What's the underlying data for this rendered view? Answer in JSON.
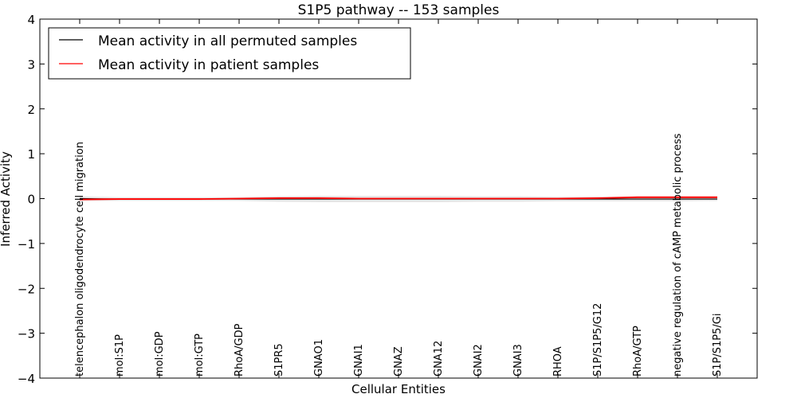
{
  "chart_data": {
    "type": "line",
    "title": "S1P5 pathway -- 153 samples",
    "xlabel": "Cellular Entities",
    "ylabel": "Inferred Activity",
    "ylim": [
      -4,
      4
    ],
    "yticks": [
      -4,
      -3,
      -2,
      -1,
      0,
      1,
      2,
      3,
      4
    ],
    "ytick_labels": [
      "−4",
      "−3",
      "−2",
      "−1",
      "0",
      "1",
      "2",
      "3",
      "4"
    ],
    "categories": [
      "telencephalon oligodendrocyte cell migration",
      "mol:S1P",
      "mol:GDP",
      "mol:GTP",
      "RhoA/GDP",
      "S1PR5",
      "GNAO1",
      "GNAI1",
      "GNAZ",
      "GNA12",
      "GNAI2",
      "GNAI3",
      "RHOA",
      "S1P/S1P5/G12",
      "RhoA/GTP",
      "negative regulation of cAMP metabolic process",
      "S1P/S1P5/Gi"
    ],
    "legend_position": "top-left",
    "series": [
      {
        "name": "Mean activity in all permuted samples",
        "color": "#000000",
        "values": [
          0.0,
          -0.01,
          -0.01,
          -0.01,
          -0.01,
          -0.01,
          -0.01,
          -0.01,
          -0.01,
          -0.01,
          -0.01,
          -0.01,
          -0.01,
          -0.01,
          -0.01,
          -0.01,
          -0.01
        ],
        "band": [
          0.05,
          0.04,
          0.04,
          0.04,
          0.04,
          0.06,
          0.07,
          0.07,
          0.07,
          0.07,
          0.06,
          0.06,
          0.05,
          0.05,
          0.05,
          0.05,
          0.04
        ]
      },
      {
        "name": "Mean activity in patient samples",
        "color": "#ff0000",
        "values": [
          -0.02,
          -0.01,
          -0.01,
          -0.01,
          0.0,
          0.01,
          0.01,
          0.0,
          0.0,
          0.0,
          0.0,
          0.0,
          0.0,
          0.01,
          0.03,
          0.03,
          0.03
        ],
        "band": [
          0.03,
          0.02,
          0.02,
          0.02,
          0.02,
          0.03,
          0.03,
          0.02,
          0.02,
          0.02,
          0.02,
          0.02,
          0.02,
          0.02,
          0.03,
          0.03,
          0.03
        ]
      }
    ]
  }
}
